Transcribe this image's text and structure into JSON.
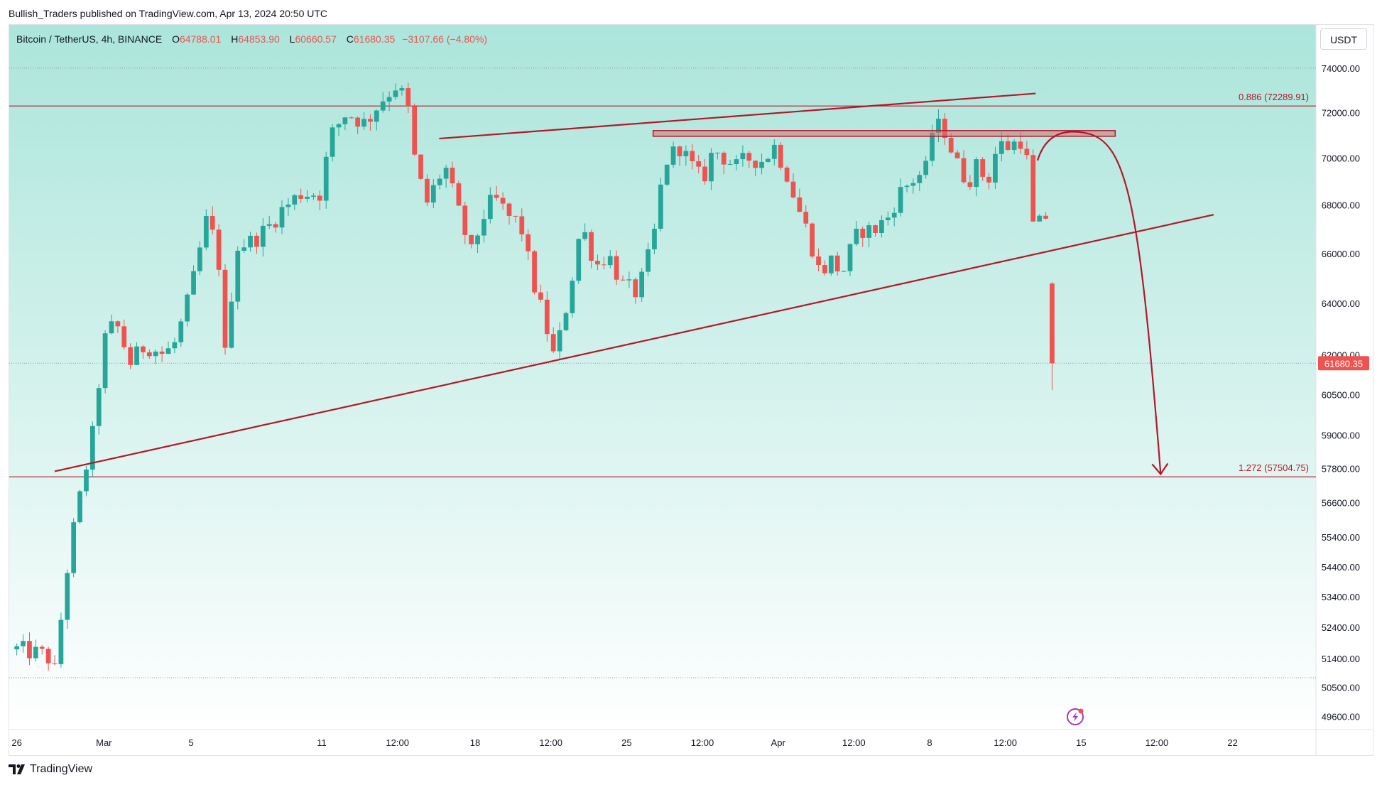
{
  "publisher_line": "Bullish_Traders published on TradingView.com, Apr 13, 2024 20:50 UTC",
  "footer_brand": "TradingView",
  "colors": {
    "up": "#26a69a",
    "down": "#ef5350",
    "drawing": "#b2182b",
    "bg_top": "#aee6dc",
    "bg_bottom": "#ffffff"
  },
  "legend": {
    "symbol": "Bitcoin / TetherUS, 4h, BINANCE",
    "o_label": "O",
    "o_value": "64788.01",
    "h_label": "H",
    "h_value": "64853.90",
    "l_label": "L",
    "l_value": "60660.57",
    "c_label": "C",
    "c_value": "61680.35",
    "change": "−3107.66 (−4.80%)"
  },
  "currency": "USDT",
  "chart_data": {
    "type": "candlestick",
    "symbol": "BTCUSDT",
    "timeframe": "4h",
    "exchange": "BINANCE",
    "y_scale": "log",
    "ylim": [
      49200,
      76000
    ],
    "y_ticks": [
      74000,
      72000,
      70000,
      68000,
      66000,
      64000,
      62000,
      60500,
      59000,
      57800,
      56600,
      55400,
      54400,
      53400,
      52400,
      51400,
      50500,
      49600
    ],
    "y_tick_labels": [
      "74000.00",
      "72000.00",
      "70000.00",
      "68000.00",
      "66000.00",
      "64000.00",
      "62000.00",
      "60500.00",
      "59000.00",
      "57800.00",
      "56600.00",
      "55400.00",
      "54400.00",
      "53400.00",
      "52400.00",
      "51400.00",
      "50500.00",
      "49600.00"
    ],
    "x_range_days": [
      -0.2,
      34.3
    ],
    "x_ticks": [
      {
        "d": 0,
        "label": "26"
      },
      {
        "d": 2.3,
        "label": "Mar"
      },
      {
        "d": 4.6,
        "label": "5"
      },
      {
        "d": 8.05,
        "label": "11"
      },
      {
        "d": 10.05,
        "label": "12:00"
      },
      {
        "d": 12.1,
        "label": "18"
      },
      {
        "d": 14.1,
        "label": "12:00"
      },
      {
        "d": 16.1,
        "label": "25"
      },
      {
        "d": 18.1,
        "label": "12:00"
      },
      {
        "d": 20.1,
        "label": "Apr"
      },
      {
        "d": 22.1,
        "label": "12:00"
      },
      {
        "d": 24.1,
        "label": "8"
      },
      {
        "d": 26.1,
        "label": "12:00"
      },
      {
        "d": 28.1,
        "label": "15"
      },
      {
        "d": 30.1,
        "label": "12:00"
      },
      {
        "d": 32.1,
        "label": "22"
      }
    ],
    "last_price": 61680.35,
    "last_price_label": "61680.35",
    "price_marks": [
      {
        "price": 74000,
        "label": ""
      },
      {
        "price": 72289.91,
        "label": "0.886 (72289.91)"
      },
      {
        "price": 57504.75,
        "label": "1.272 (57504.75)"
      },
      {
        "price": 50800,
        "label": ""
      }
    ],
    "candle_path": [
      [
        0,
        51700
      ],
      [
        0.8,
        51500
      ],
      [
        1.0,
        51000
      ],
      [
        1.4,
        55000
      ],
      [
        1.7,
        57000
      ],
      [
        2.0,
        59000
      ],
      [
        2.3,
        62500
      ],
      [
        2.6,
        63300
      ],
      [
        3.0,
        61700
      ],
      [
        3.4,
        62400
      ],
      [
        3.9,
        62000
      ],
      [
        4.2,
        62500
      ],
      [
        4.6,
        64500
      ],
      [
        5.0,
        67300
      ],
      [
        5.3,
        66300
      ],
      [
        5.5,
        62000
      ],
      [
        5.8,
        66300
      ],
      [
        6.2,
        66500
      ],
      [
        6.6,
        67000
      ],
      [
        7.0,
        67800
      ],
      [
        7.5,
        68500
      ],
      [
        8.0,
        68500
      ],
      [
        8.3,
        71000
      ],
      [
        8.7,
        72000
      ],
      [
        9.2,
        71500
      ],
      [
        9.6,
        72500
      ],
      [
        10.0,
        73200
      ],
      [
        10.3,
        72500
      ],
      [
        10.5,
        70000
      ],
      [
        10.8,
        68000
      ],
      [
        11.3,
        69700
      ],
      [
        11.6,
        68000
      ],
      [
        12.0,
        66000
      ],
      [
        12.3,
        67500
      ],
      [
        12.6,
        68300
      ],
      [
        13.0,
        67500
      ],
      [
        13.3,
        67200
      ],
      [
        13.6,
        65000
      ],
      [
        13.9,
        63500
      ],
      [
        14.2,
        61800
      ],
      [
        14.6,
        64500
      ],
      [
        14.9,
        67200
      ],
      [
        15.3,
        65500
      ],
      [
        15.6,
        66000
      ],
      [
        16.0,
        64700
      ],
      [
        16.4,
        64400
      ],
      [
        16.8,
        66500
      ],
      [
        17.1,
        69800
      ],
      [
        17.5,
        70500
      ],
      [
        17.8,
        69700
      ],
      [
        18.1,
        69000
      ],
      [
        18.4,
        70400
      ],
      [
        18.7,
        70000
      ],
      [
        19.0,
        69600
      ],
      [
        19.3,
        70000
      ],
      [
        19.7,
        69900
      ],
      [
        20.0,
        70500
      ],
      [
        20.3,
        69500
      ],
      [
        20.6,
        68000
      ],
      [
        20.9,
        66800
      ],
      [
        21.2,
        65200
      ],
      [
        21.5,
        65700
      ],
      [
        21.8,
        65200
      ],
      [
        22.1,
        66500
      ],
      [
        22.3,
        67000
      ],
      [
        22.6,
        66900
      ],
      [
        23.0,
        67500
      ],
      [
        23.3,
        68500
      ],
      [
        23.6,
        69000
      ],
      [
        24.0,
        69500
      ],
      [
        24.2,
        71500
      ],
      [
        24.5,
        71200
      ],
      [
        24.8,
        69800
      ],
      [
        25.1,
        69000
      ],
      [
        25.4,
        69800
      ],
      [
        25.6,
        68800
      ],
      [
        25.9,
        70600
      ],
      [
        26.2,
        70500
      ],
      [
        26.5,
        70800
      ],
      [
        26.7,
        69700
      ],
      [
        26.85,
        66800
      ],
      [
        27.0,
        67200
      ],
      [
        27.25,
        67700
      ],
      [
        27.35,
        64800
      ],
      [
        27.47,
        61680
      ]
    ],
    "drawings": {
      "rising_support": {
        "p1": [
          1.0,
          57700
        ],
        "p2": [
          31.6,
          67600
        ]
      },
      "upper_trend": {
        "p1": [
          11.15,
          70850
        ],
        "p2": [
          26.9,
          72850
        ]
      },
      "resistance_zone": {
        "d1": 16.8,
        "d2": 29.0,
        "low": 70950,
        "high": 71200
      },
      "projection_arrow_hump": {
        "start": [
          26.95,
          69900
        ],
        "peak": [
          28.2,
          71100
        ],
        "end": [
          30.2,
          57600
        ]
      }
    }
  }
}
